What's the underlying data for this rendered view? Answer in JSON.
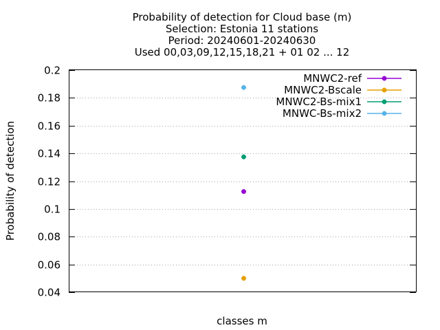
{
  "chart_data": {
    "type": "scatter",
    "title_lines": [
      "Probability of detection  for Cloud base (m)",
      "Selection: Estonia     11 stations",
      "Period: 20240601-20240630",
      "Used 00,03,09,12,15,18,21 + 01 02 ... 12"
    ],
    "xlabel": "classes m",
    "ylabel": "Probability of detection",
    "ylim": [
      0.04,
      0.2
    ],
    "yticks": [
      0.04,
      0.06,
      0.08,
      0.1,
      0.12,
      0.14,
      0.16,
      0.18,
      0.2
    ],
    "ytick_labels": [
      "0.04",
      "0.06",
      "0.08",
      "0.1",
      "0.12",
      "0.14",
      "0.16",
      "0.18",
      "0.2"
    ],
    "grid": true,
    "legend_position": "top-right",
    "series": [
      {
        "name": "MNWC2-ref",
        "color": "#9400d3",
        "values": [
          0.1125
        ]
      },
      {
        "name": "MNWC2-Bscale",
        "color": "#e69f00",
        "values": [
          0.05
        ]
      },
      {
        "name": "MNWC2-Bs-mix1",
        "color": "#009e73",
        "values": [
          0.1375
        ]
      },
      {
        "name": "MNWC-Bs-mix2",
        "color": "#56b4e9",
        "values": [
          0.1875
        ]
      }
    ]
  }
}
